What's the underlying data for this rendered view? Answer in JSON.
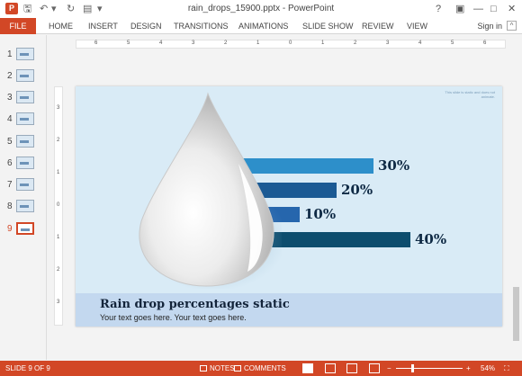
{
  "window": {
    "title": "rain_drops_15900.pptx - PowerPoint",
    "app_icon": "P",
    "help": "?",
    "restore": "▣",
    "minimize": "—",
    "maximize": "□",
    "close": "✕"
  },
  "quick_access": {
    "save": "🖫",
    "undo": "↶",
    "undo_dropdown": "▾",
    "redo": "↻",
    "present": "▤",
    "customize": "▾"
  },
  "ribbon": {
    "file": "FILE",
    "tabs": [
      "HOME",
      "INSERT",
      "DESIGN",
      "TRANSITIONS",
      "ANIMATIONS",
      "SLIDE SHOW",
      "REVIEW",
      "VIEW"
    ],
    "sign_in": "Sign in",
    "collapse": "^"
  },
  "thumbnails": [
    {
      "num": "1"
    },
    {
      "num": "2"
    },
    {
      "num": "3"
    },
    {
      "num": "4"
    },
    {
      "num": "5"
    },
    {
      "num": "6"
    },
    {
      "num": "7"
    },
    {
      "num": "8"
    },
    {
      "num": "9"
    }
  ],
  "active_slide_index": 9,
  "ruler": {
    "horizontal": [
      "6",
      "5",
      "4",
      "3",
      "2",
      "1",
      "0",
      "1",
      "2",
      "3",
      "4",
      "5",
      "6"
    ],
    "vertical": [
      "3",
      "2",
      "1",
      "0",
      "1",
      "2",
      "3"
    ]
  },
  "slide": {
    "corner_note": "This slide is static and does not animate.",
    "bars": [
      {
        "label": "30%",
        "value": 30,
        "color": "#2d8fca"
      },
      {
        "label": "20%",
        "value": 20,
        "color": "#1b5a94"
      },
      {
        "label": "10%",
        "value": 10,
        "color": "#2666ad"
      },
      {
        "label": "40%",
        "value": 40,
        "color": "#0d4d6e"
      }
    ],
    "title": "Rain drop percentages static",
    "subtitle": "Your text goes here. Your text goes here."
  },
  "status_bar": {
    "slide_indicator": "SLIDE 9 OF 9",
    "notes": "NOTES",
    "comments": "COMMENTS",
    "zoom_minus": "−",
    "zoom_plus": "+",
    "zoom": "54%",
    "zoom_level": 54
  },
  "colors": {
    "accent": "#d24726",
    "slide_bg": "#d9ebf6",
    "footer_band": "#c3d8ef"
  }
}
